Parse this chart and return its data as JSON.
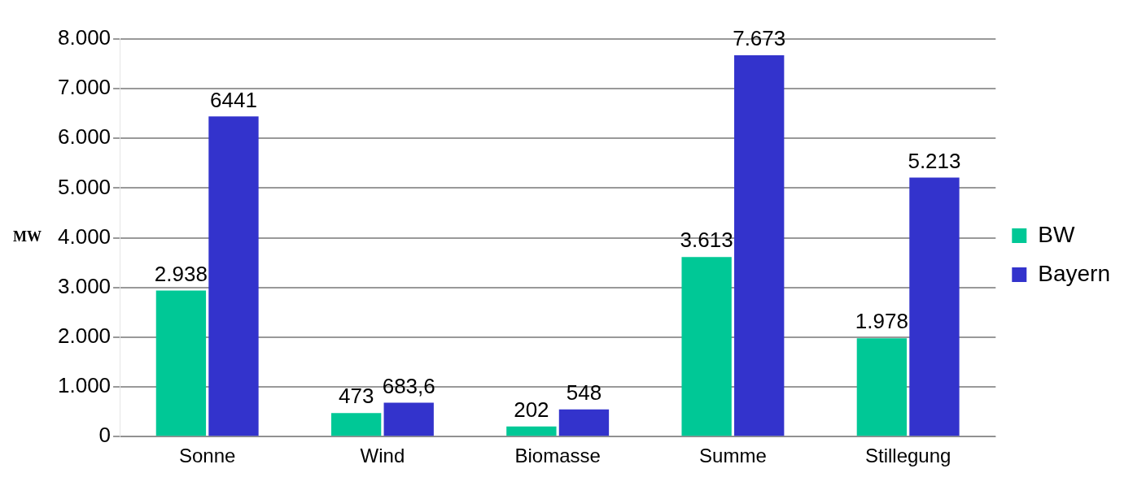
{
  "chart_data": {
    "type": "bar",
    "ylabel": "MW",
    "categories": [
      "Sonne",
      "Wind",
      "Biomasse",
      "Summe",
      "Stillegung"
    ],
    "series": [
      {
        "name": "BW",
        "color": "#00c896",
        "values": [
          2938,
          473,
          202,
          3613,
          1978
        ],
        "value_labels": [
          "2.938",
          "473",
          "202",
          "3.613",
          "1.978"
        ]
      },
      {
        "name": "Bayern",
        "color": "#3333cc",
        "values": [
          6441,
          683.6,
          548,
          7673,
          5213
        ],
        "value_labels": [
          "6441",
          "683,6",
          "548",
          "7.673",
          "5.213"
        ]
      }
    ],
    "ylim": [
      0,
      8000
    ],
    "yticks": [
      0,
      {
        "value": 1000,
        "label": "1.000"
      },
      {
        "value": 2000,
        "label": "2.000"
      },
      {
        "value": 3000,
        "label": "3.000"
      },
      {
        "value": 4000,
        "label": "4.000"
      },
      {
        "value": 5000,
        "label": "5.000"
      },
      {
        "value": 6000,
        "label": "6.000"
      },
      {
        "value": 7000,
        "label": "7.000"
      },
      {
        "value": 8000,
        "label": "8.000"
      }
    ],
    "grid": "y",
    "legend": "right"
  }
}
